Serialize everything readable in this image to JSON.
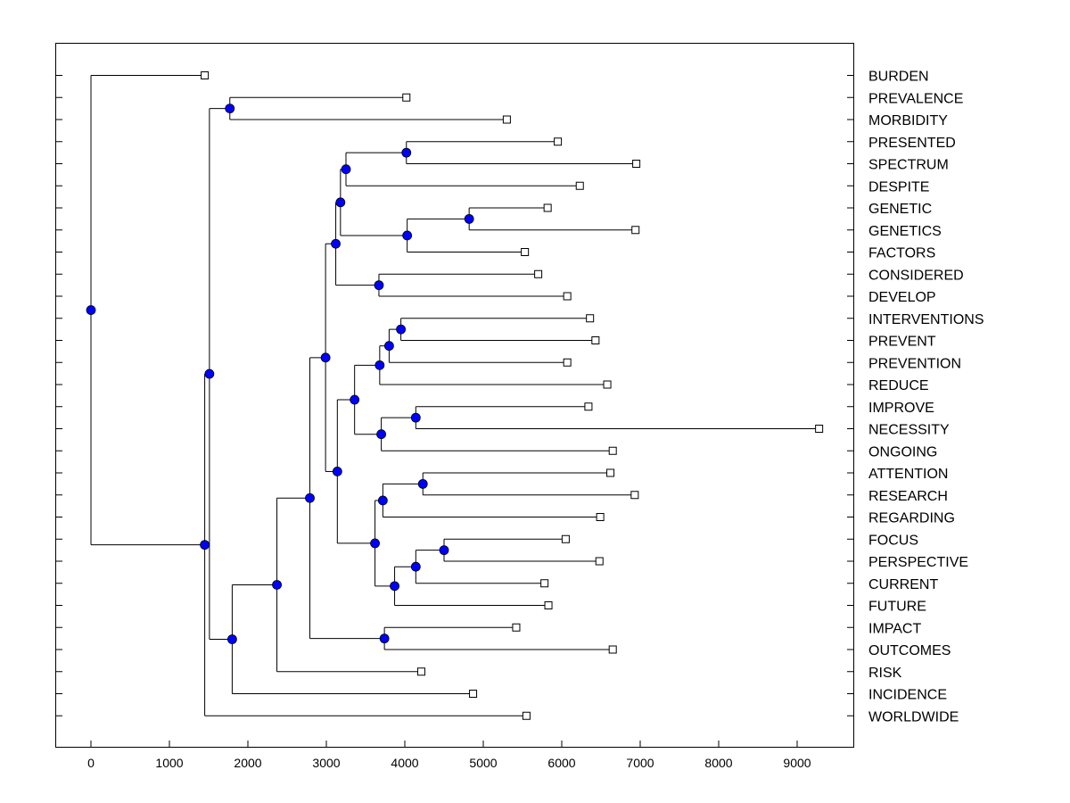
{
  "chart_data": {
    "type": "dendrogram",
    "orientation": "horizontal",
    "x_axis": {
      "min": -450,
      "max": 9700,
      "ticks": [
        0,
        1000,
        2000,
        3000,
        4000,
        5000,
        6000,
        7000,
        8000,
        9000
      ],
      "tick_labels": [
        "0",
        "1000",
        "2000",
        "3000",
        "4000",
        "5000",
        "6000",
        "7000",
        "8000",
        "9000"
      ]
    },
    "node_color": "#0000ff",
    "leaf_marker_color": "#ffffff",
    "line_color": "#000000",
    "leaves": [
      {
        "label": "BURDEN",
        "value": 1450
      },
      {
        "label": "PREVALENCE",
        "value": 4020
      },
      {
        "label": "MORBIDITY",
        "value": 5300
      },
      {
        "label": "PRESENTED",
        "value": 5950
      },
      {
        "label": "SPECTRUM",
        "value": 6950
      },
      {
        "label": "DESPITE",
        "value": 6230
      },
      {
        "label": "GENETIC",
        "value": 5820
      },
      {
        "label": "GENETICS",
        "value": 6940
      },
      {
        "label": "FACTORS",
        "value": 5530
      },
      {
        "label": "CONSIDERED",
        "value": 5700
      },
      {
        "label": "DEVELOP",
        "value": 6070
      },
      {
        "label": "INTERVENTIONS",
        "value": 6360
      },
      {
        "label": "PREVENT",
        "value": 6430
      },
      {
        "label": "PREVENTION",
        "value": 6070
      },
      {
        "label": "REDUCE",
        "value": 6580
      },
      {
        "label": "IMPROVE",
        "value": 6340
      },
      {
        "label": "NECESSITY",
        "value": 9280
      },
      {
        "label": "ONGOING",
        "value": 6650
      },
      {
        "label": "ATTENTION",
        "value": 6620
      },
      {
        "label": "RESEARCH",
        "value": 6930
      },
      {
        "label": "REGARDING",
        "value": 6490
      },
      {
        "label": "FOCUS",
        "value": 6050
      },
      {
        "label": "PERSPECTIVE",
        "value": 6480
      },
      {
        "label": "CURRENT",
        "value": 5780
      },
      {
        "label": "FUTURE",
        "value": 5830
      },
      {
        "label": "IMPACT",
        "value": 5420
      },
      {
        "label": "OUTCOMES",
        "value": 6650
      },
      {
        "label": "RISK",
        "value": 4210
      },
      {
        "label": "INCIDENCE",
        "value": 4870
      },
      {
        "label": "WORLDWIDE",
        "value": 5550
      }
    ],
    "nodes": [
      {
        "id": "n_prev_morb",
        "value": 1770,
        "children": [
          "L1",
          "L2"
        ]
      },
      {
        "id": "n_pres_spec",
        "value": 4020,
        "children": [
          "L3",
          "L4"
        ]
      },
      {
        "id": "n_spec_desp",
        "value": 3250,
        "children": [
          "n_pres_spec",
          "L5"
        ]
      },
      {
        "id": "n_genetic",
        "value": 4820,
        "children": [
          "L6",
          "L7"
        ]
      },
      {
        "id": "n_gen_fact",
        "value": 4030,
        "children": [
          "n_genetic",
          "L8"
        ]
      },
      {
        "id": "n_upper_a",
        "value": 3180,
        "children": [
          "n_spec_desp",
          "n_gen_fact"
        ]
      },
      {
        "id": "n_cons_dev",
        "value": 3670,
        "children": [
          "L9",
          "L10"
        ]
      },
      {
        "id": "n_upper",
        "value": 3120,
        "children": [
          "n_upper_a",
          "n_cons_dev"
        ]
      },
      {
        "id": "n_int_prev",
        "value": 3950,
        "children": [
          "L11",
          "L12"
        ]
      },
      {
        "id": "n_prevention",
        "value": 3800,
        "children": [
          "n_int_prev",
          "L13"
        ]
      },
      {
        "id": "n_reduce",
        "value": 3680,
        "children": [
          "n_prevention",
          "L14"
        ]
      },
      {
        "id": "n_imp_nec",
        "value": 4140,
        "children": [
          "L15",
          "L16"
        ]
      },
      {
        "id": "n_ongoing",
        "value": 3700,
        "children": [
          "n_imp_nec",
          "L17"
        ]
      },
      {
        "id": "n_block_a",
        "value": 3360,
        "children": [
          "n_reduce",
          "n_ongoing"
        ]
      },
      {
        "id": "n_att_res",
        "value": 4230,
        "children": [
          "L18",
          "L19"
        ]
      },
      {
        "id": "n_regarding",
        "value": 3720,
        "children": [
          "n_att_res",
          "L20"
        ]
      },
      {
        "id": "n_foc_persp",
        "value": 4500,
        "children": [
          "L21",
          "L22"
        ]
      },
      {
        "id": "n_current",
        "value": 4140,
        "children": [
          "n_foc_persp",
          "L23"
        ]
      },
      {
        "id": "n_future",
        "value": 3870,
        "children": [
          "n_current",
          "L24"
        ]
      },
      {
        "id": "n_block_b",
        "value": 3620,
        "children": [
          "n_regarding",
          "n_future"
        ]
      },
      {
        "id": "n_lower",
        "value": 3140,
        "children": [
          "n_block_a",
          "n_block_b"
        ]
      },
      {
        "id": "n_mid",
        "value": 2990,
        "children": [
          "n_upper",
          "n_lower"
        ]
      },
      {
        "id": "n_imp_out",
        "value": 3740,
        "children": [
          "L25",
          "L26"
        ]
      },
      {
        "id": "n_big",
        "value": 2790,
        "children": [
          "n_mid",
          "n_imp_out"
        ]
      },
      {
        "id": "n_risk",
        "value": 2370,
        "children": [
          "n_big",
          "L27"
        ]
      },
      {
        "id": "n_incidence",
        "value": 1800,
        "children": [
          "n_risk",
          "L28"
        ]
      },
      {
        "id": "n_upper_left",
        "value": 1510,
        "children": [
          "n_prev_morb",
          "n_incidence"
        ]
      },
      {
        "id": "n_worldwide",
        "value": 1450,
        "children": [
          "n_upper_left",
          "L29"
        ]
      },
      {
        "id": "n_root",
        "value": 0,
        "children": [
          "L0",
          "n_worldwide"
        ]
      }
    ]
  }
}
